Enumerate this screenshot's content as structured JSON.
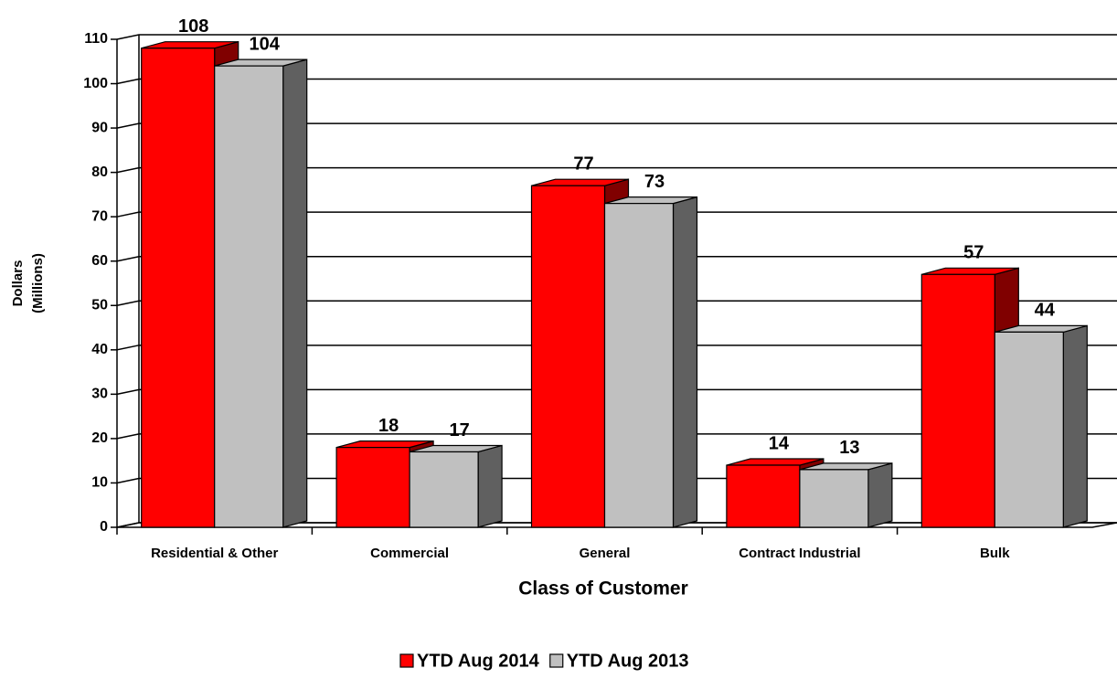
{
  "chart_data": {
    "type": "bar3d",
    "x_label": "Class of Customer",
    "y_label": [
      "Dollars",
      "(Millions)"
    ],
    "categories": [
      "Residential & Other",
      "Commercial",
      "General",
      "Contract Industrial",
      "Bulk"
    ],
    "series": [
      {
        "name": "YTD Aug 2014",
        "color": "#ff0000",
        "side_color": "#800000",
        "values": [
          108,
          18,
          77,
          14,
          57
        ]
      },
      {
        "name": "YTD Aug 2013",
        "color": "#c0c0c0",
        "side_color": "#606060",
        "values": [
          104,
          17,
          73,
          13,
          44
        ]
      }
    ],
    "ylim": [
      0,
      110
    ],
    "yticks": [
      0,
      10,
      20,
      30,
      40,
      50,
      60,
      70,
      80,
      90,
      100,
      110
    ],
    "grid": true,
    "legend": "bottom"
  }
}
